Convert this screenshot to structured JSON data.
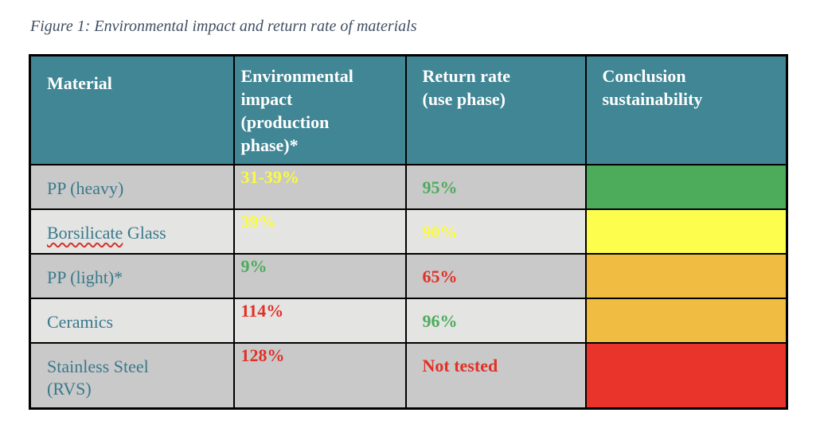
{
  "caption": "Figure 1: Environmental impact and return rate of materials",
  "table": {
    "headers": [
      {
        "label": "Material"
      },
      {
        "label": "Environmental\nimpact\n(production\nphase)*"
      },
      {
        "label": "Return rate\n(use phase)"
      },
      {
        "label": "Conclusion\nsustainability"
      }
    ],
    "rows": [
      {
        "material": "PP (heavy)",
        "impact": "31-39%",
        "impact_color": "yellow",
        "return_rate": "95%",
        "return_color": "green",
        "conclusion": "green"
      },
      {
        "material": "Borsilicate Glass",
        "misspelled_word": "Borsilicate",
        "impact": "39%",
        "impact_color": "yellow",
        "return_rate": "90%",
        "return_color": "yellow",
        "conclusion": "yellow"
      },
      {
        "material": "PP (light)*",
        "impact": "9%",
        "impact_color": "green",
        "return_rate": "65%",
        "return_color": "red",
        "conclusion": "amber"
      },
      {
        "material": "Ceramics",
        "impact": "114%",
        "impact_color": "red",
        "return_rate": "96%",
        "return_color": "green",
        "conclusion": "amber"
      },
      {
        "material": "Stainless Steel\n(RVS)",
        "impact": "128%",
        "impact_color": "red",
        "return_rate": "Not tested",
        "return_color": "red",
        "conclusion": "red"
      }
    ]
  },
  "colors": {
    "caption_text": "#414F63",
    "border_color": "#000000",
    "header_bg": "#408694",
    "header_text": "#FFFFFF",
    "row_odd_bg": "#C9C9C9",
    "row_even_bg": "#E4E4E3",
    "material_text": "#39798A",
    "val_yellow": "#FBFB3D",
    "val_green": "#4CAC5B",
    "val_red": "#E13026",
    "concl_green": "#4DAC5B",
    "concl_yellow": "#FDFD4E",
    "concl_amber": "#F1BC42",
    "concl_red": "#E9342B",
    "squiggle_red": "#D0342C"
  }
}
